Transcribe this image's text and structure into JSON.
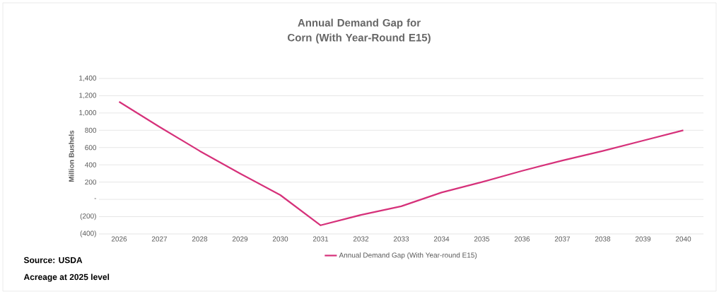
{
  "chart_data": {
    "type": "line",
    "title": "Annual Demand Gap for Corn (With Year-Round E15)",
    "ylabel": "Million Bushels",
    "categories": [
      "2026",
      "2027",
      "2028",
      "2029",
      "2030",
      "2031",
      "2032",
      "2033",
      "2034",
      "2035",
      "2036",
      "2037",
      "2038",
      "2039",
      "2040"
    ],
    "series": [
      {
        "name": "Annual Demand Gap (With Year-round E15)",
        "color": "#d6317a",
        "values": [
          1130,
          840,
          560,
          300,
          50,
          -300,
          -180,
          -80,
          80,
          200,
          330,
          450,
          560,
          680,
          800
        ]
      }
    ],
    "ylim": [
      -400,
      1400
    ],
    "yticks": [
      {
        "value": -400,
        "label": "(400)"
      },
      {
        "value": -200,
        "label": "(200)"
      },
      {
        "value": 0,
        "label": "-"
      },
      {
        "value": 200,
        "label": "200"
      },
      {
        "value": 400,
        "label": "400"
      },
      {
        "value": 600,
        "label": "600"
      },
      {
        "value": 800,
        "label": "800"
      },
      {
        "value": 1000,
        "label": "1,000"
      },
      {
        "value": 1200,
        "label": "1,200"
      },
      {
        "value": 1400,
        "label": "1,400"
      }
    ],
    "grid": "y",
    "legend": "bottom",
    "annotations": [
      "Source: USDA",
      "Acreage at 2025 level"
    ]
  }
}
